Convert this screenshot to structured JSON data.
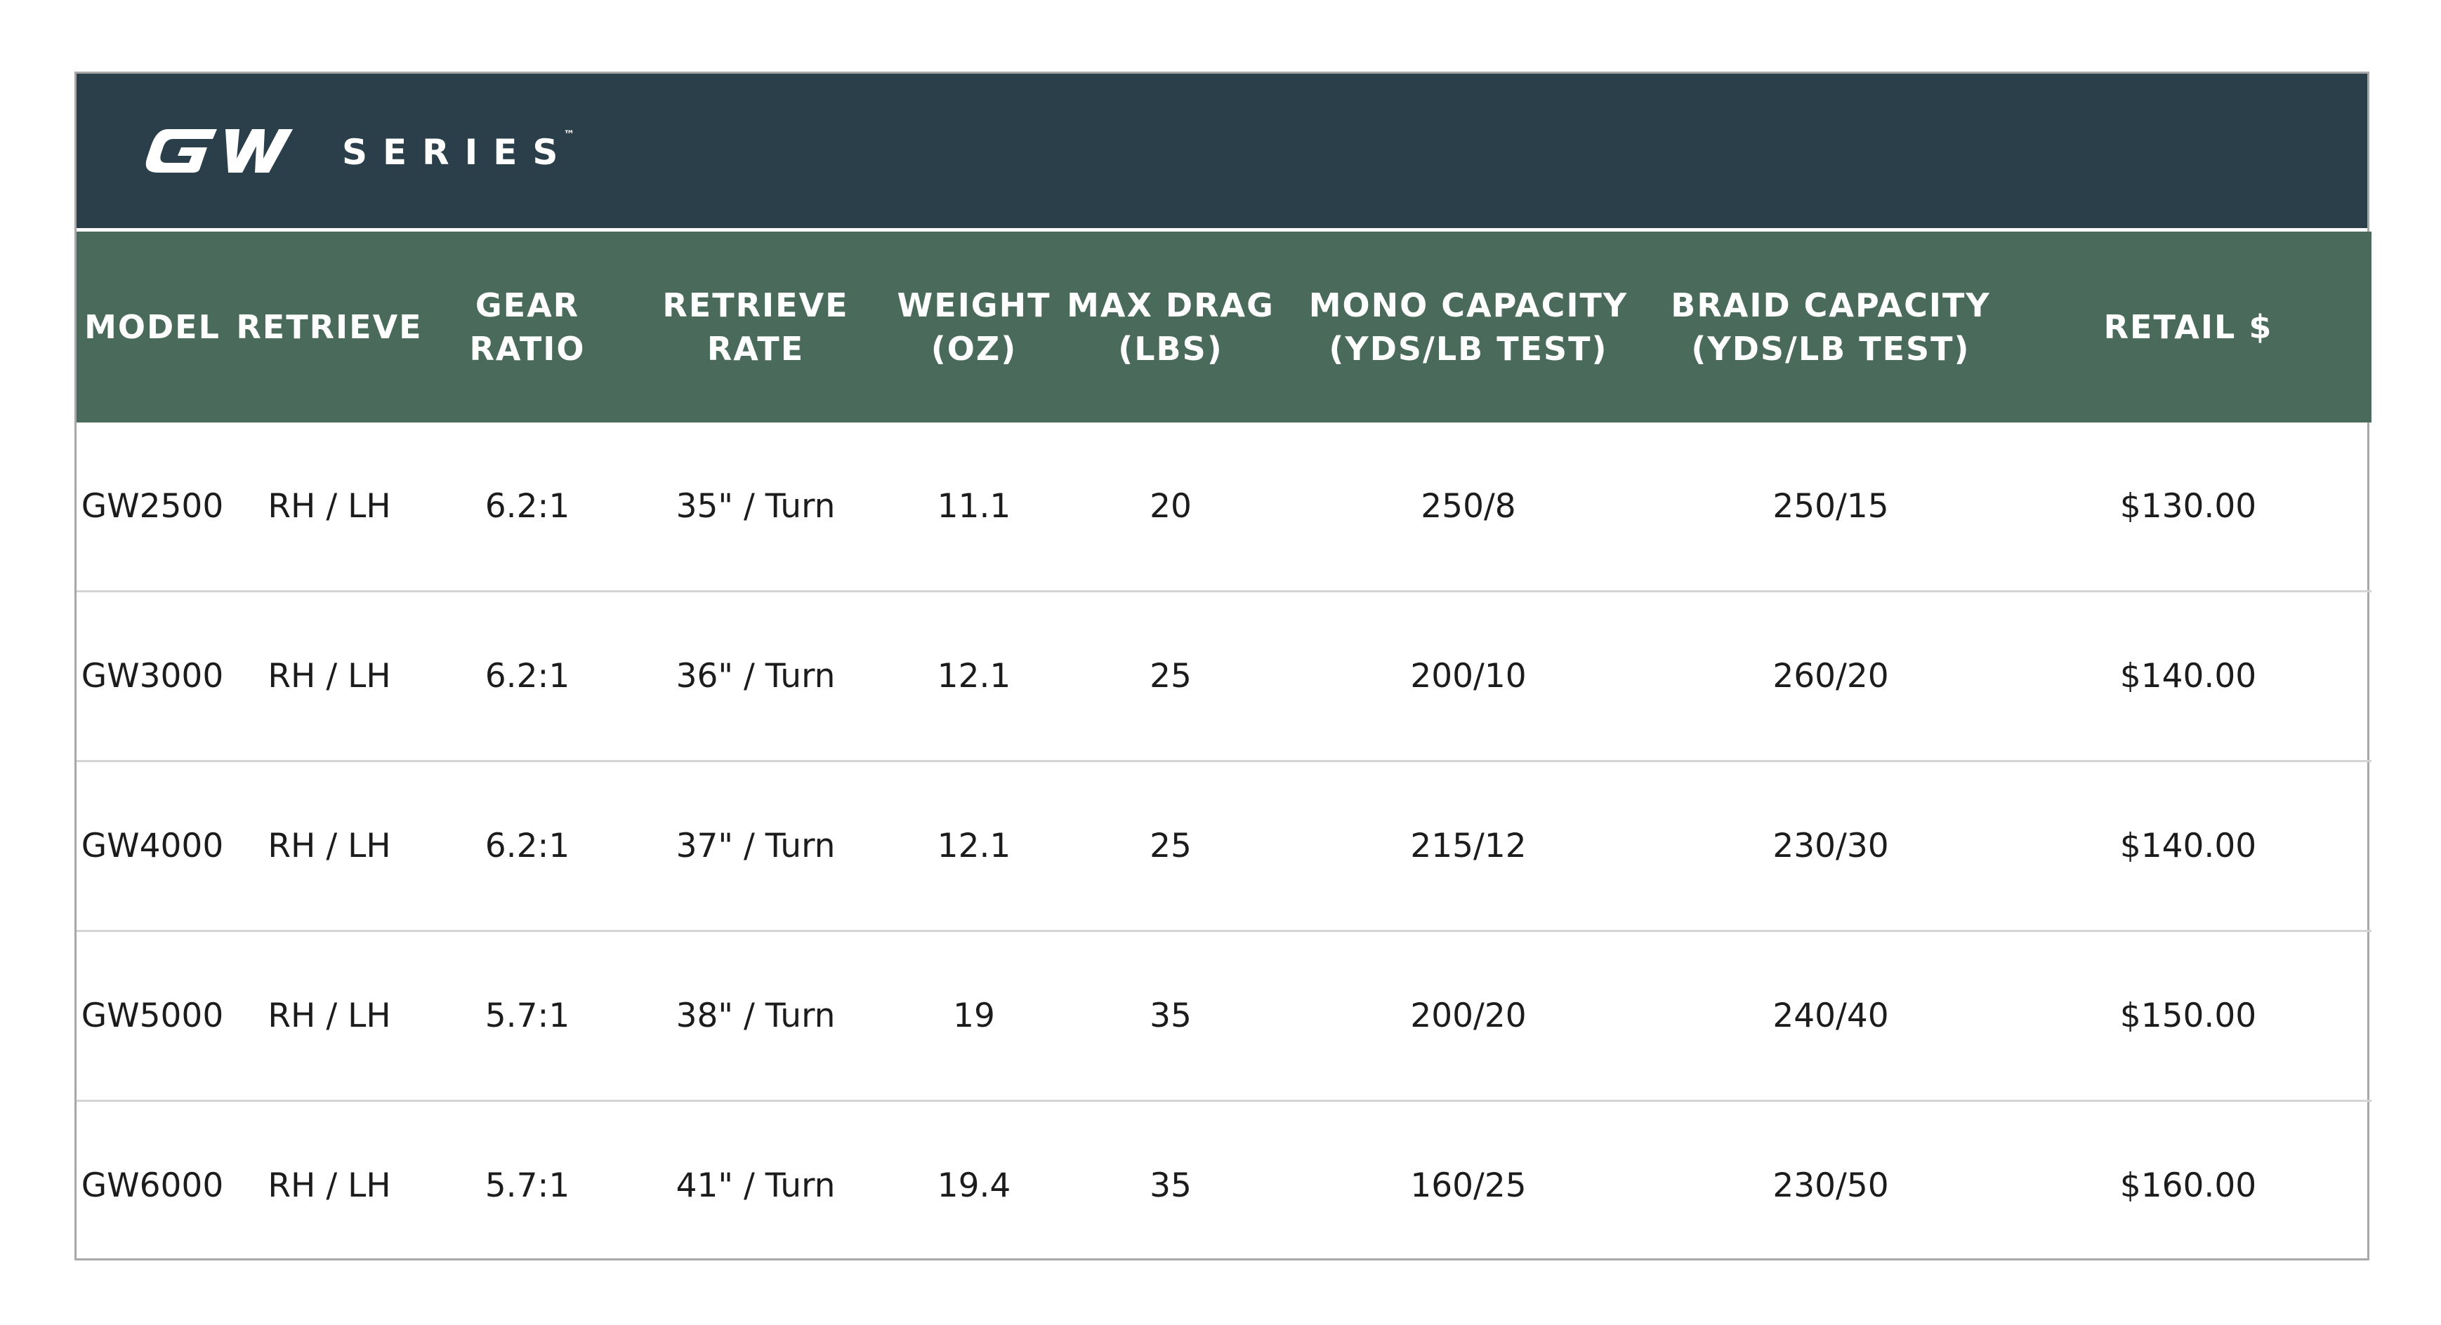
{
  "brand": {
    "logo_text": "GW",
    "series_label": "SERIES",
    "trademark": "™"
  },
  "colors": {
    "brand_bar": "#2a3f4a",
    "header_row": "#4a6a5c",
    "border": "#a8a8a8",
    "divider": "#d4d4d4"
  },
  "table": {
    "headers": [
      "MODEL",
      "RETRIEVE",
      "GEAR\nRATIO",
      "RETRIEVE\nRATE",
      "WEIGHT\n(OZ)",
      "MAX DRAG\n(LBS)",
      "MONO CAPACITY\n(YDS/LB TEST)",
      "BRAID CAPACITY\n(YDS/LB TEST)",
      "RETAIL $"
    ],
    "rows": [
      [
        "GW2500",
        "RH / LH",
        "6.2:1",
        "35\" / Turn",
        "11.1",
        "20",
        "250/8",
        "250/15",
        "$130.00"
      ],
      [
        "GW3000",
        "RH / LH",
        "6.2:1",
        "36\" / Turn",
        "12.1",
        "25",
        "200/10",
        "260/20",
        "$140.00"
      ],
      [
        "GW4000",
        "RH / LH",
        "6.2:1",
        "37\" / Turn",
        "12.1",
        "25",
        "215/12",
        "230/30",
        "$140.00"
      ],
      [
        "GW5000",
        "RH / LH",
        "5.7:1",
        "38\" / Turn",
        "19",
        "35",
        "200/20",
        "240/40",
        "$150.00"
      ],
      [
        "GW6000",
        "RH / LH",
        "5.7:1",
        "41\" / Turn",
        "19.4",
        "35",
        "160/25",
        "230/50",
        "$160.00"
      ]
    ]
  }
}
